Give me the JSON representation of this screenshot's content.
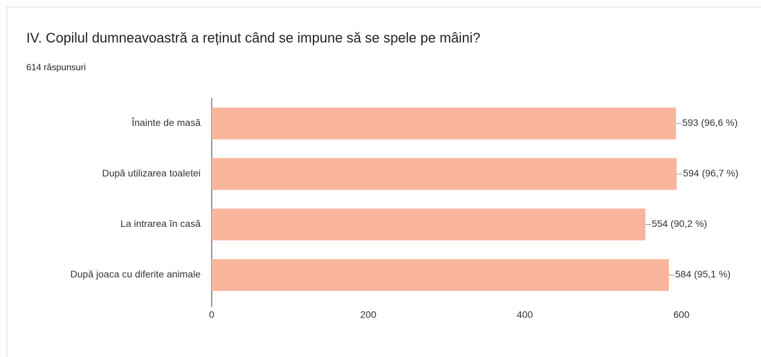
{
  "chart_data": {
    "type": "bar",
    "orientation": "horizontal",
    "title": "IV. Copilul dumneavoastră a reținut când se impune să se spele pe mâini?",
    "subtitle": "614 răspunsuri",
    "categories": [
      "Înainte de masă",
      "După utilizarea toaletei",
      "La intrarea în casă",
      "După joaca cu diferite animale"
    ],
    "values": [
      593,
      594,
      554,
      584
    ],
    "value_labels": [
      "593 (96,6 %)",
      "594 (96,7 %)",
      "554 (90,2 %)",
      "584 (95,1 %)"
    ],
    "color": "#f9b69d",
    "xlim": [
      0,
      600
    ],
    "xticks": [
      0,
      200,
      400,
      600
    ],
    "grid": false
  }
}
